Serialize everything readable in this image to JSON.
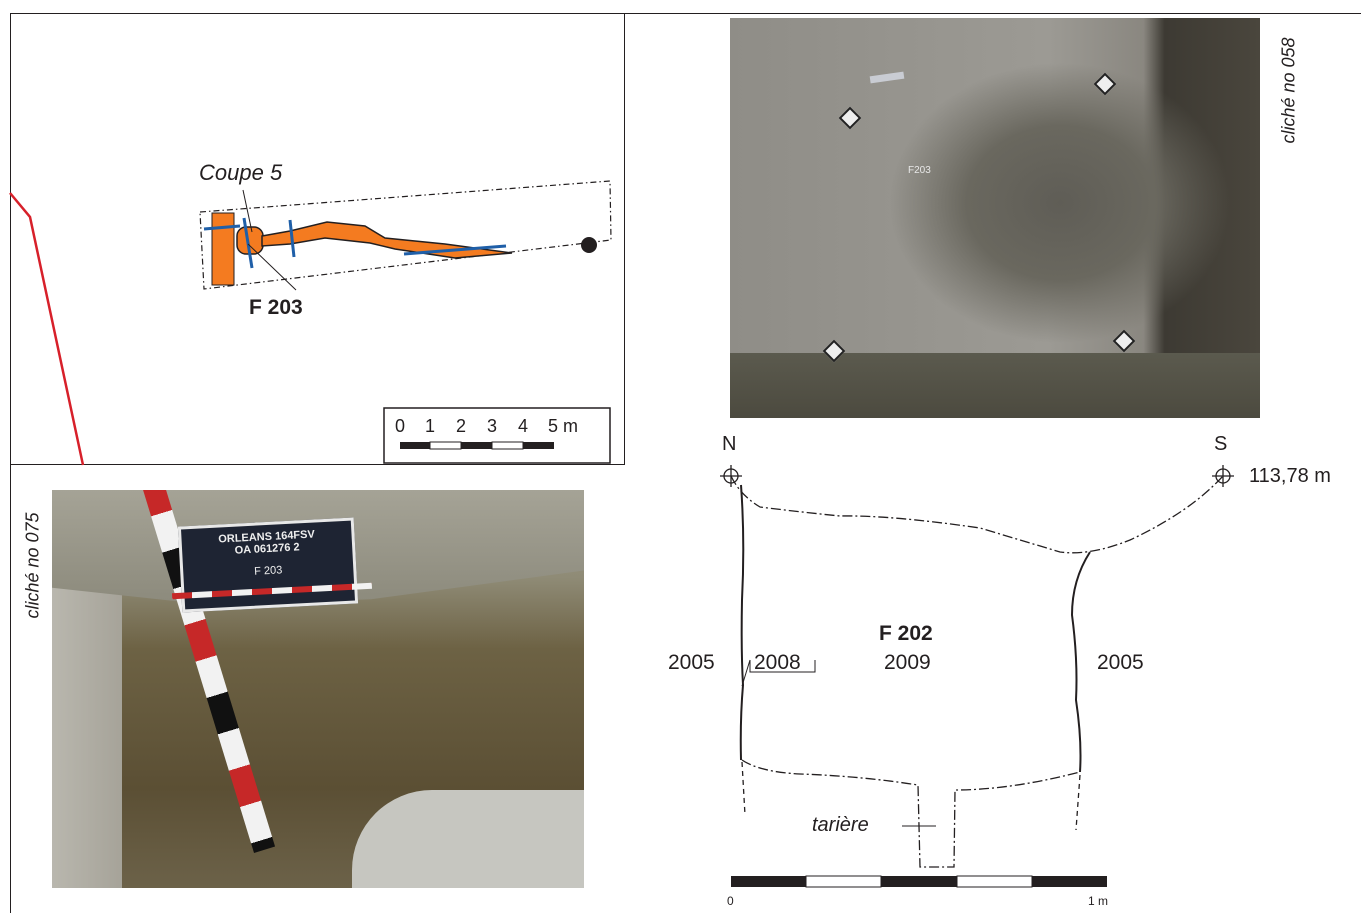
{
  "plan": {
    "section_label": "Coupe 5",
    "feature_label": "F 203",
    "scale_ticks": [
      "0",
      "1",
      "2",
      "3",
      "4",
      "5 m"
    ],
    "colors": {
      "feature_fill": "#f47b20",
      "section_line": "#1f5fa8",
      "boundary": "#d7202a"
    }
  },
  "photo_top": {
    "caption": "cliché no 058",
    "feature_tag": "F203"
  },
  "photo_bottom": {
    "caption": "cliché no 075",
    "board_lines": [
      "ORLEANS 164FSV",
      "OA 061276 2",
      "F 203"
    ]
  },
  "section": {
    "north": "N",
    "south": "S",
    "elevation": "113,78 m",
    "feature": "F 202",
    "units": {
      "left": "2005",
      "edge": "2008",
      "fill": "2009",
      "right": "2005"
    },
    "auger_label": "tarière",
    "scale_start": "0",
    "scale_end": "1 m"
  }
}
